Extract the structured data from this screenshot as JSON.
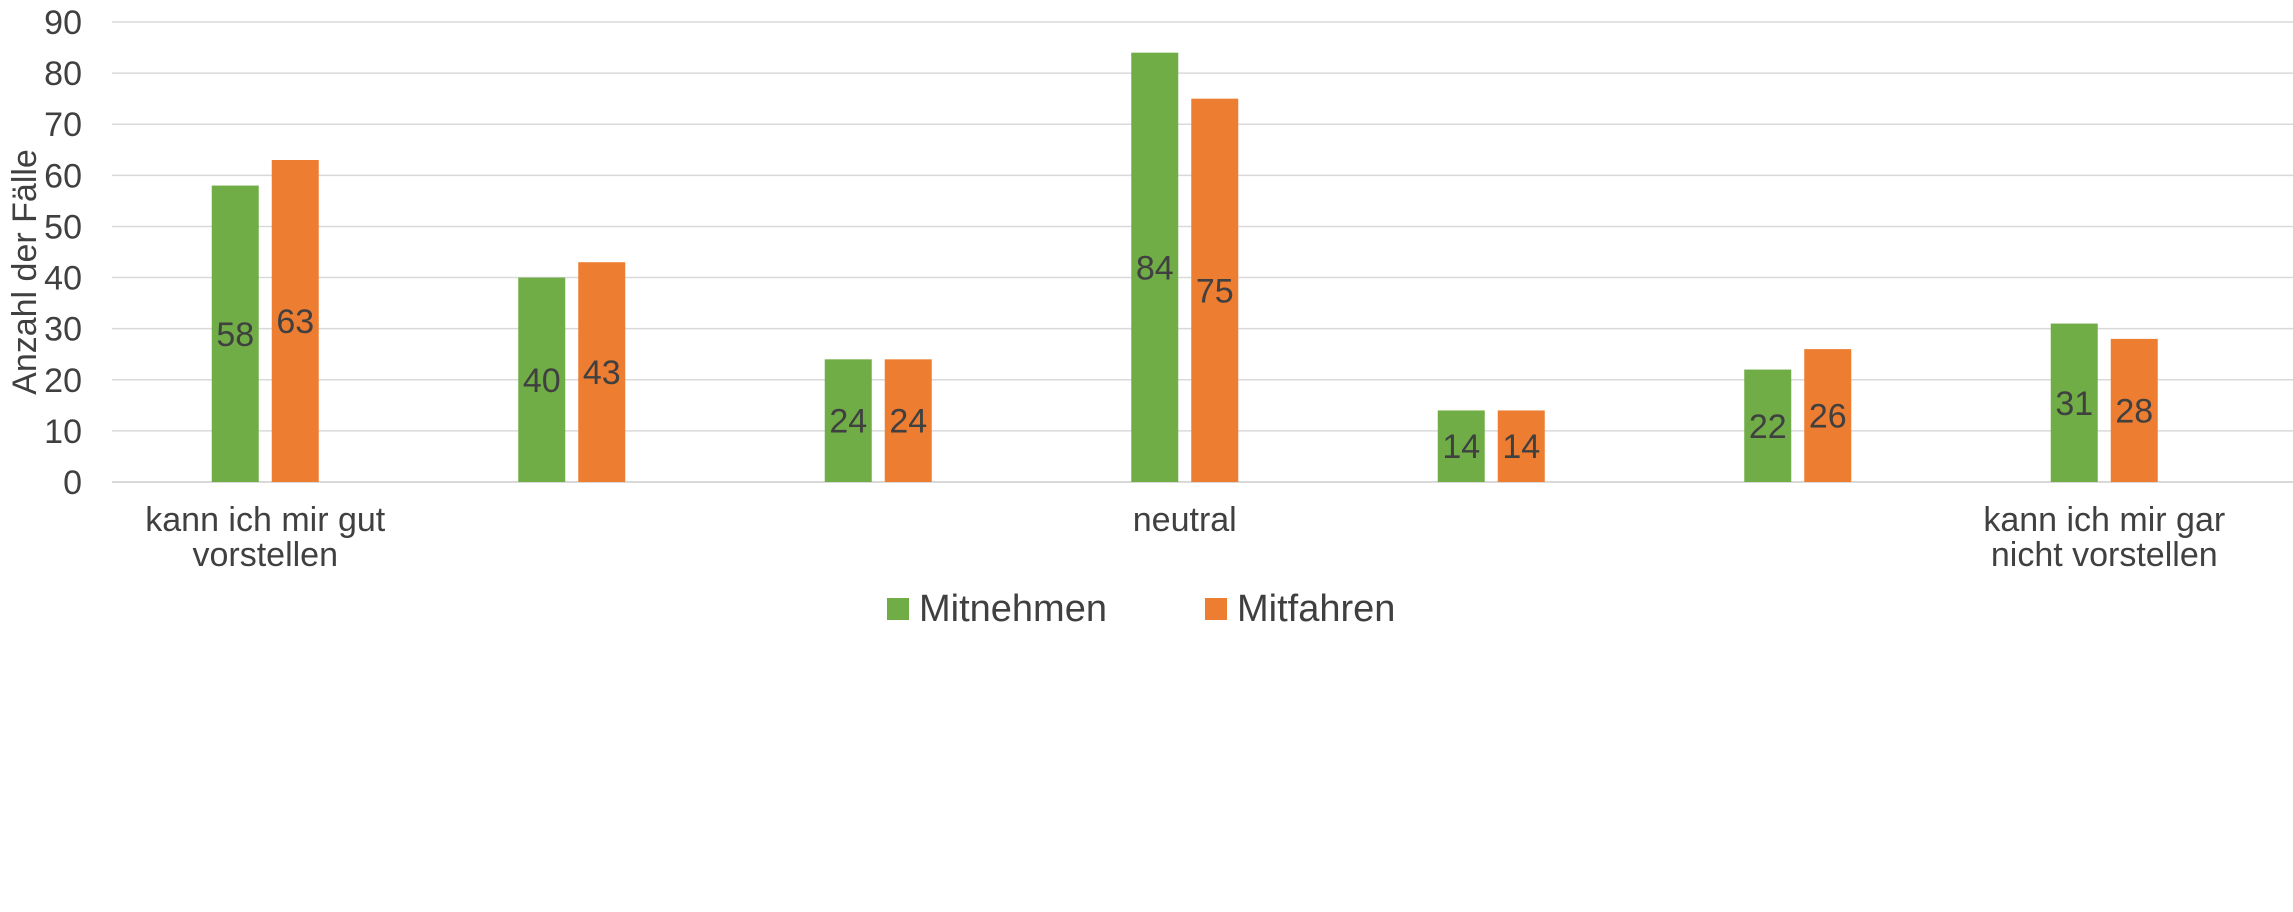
{
  "chart_data": {
    "type": "bar",
    "title": "",
    "xlabel": "",
    "ylabel": "Anzahl der Fälle",
    "ylim": [
      0,
      90
    ],
    "yticks": [
      0,
      10,
      20,
      30,
      40,
      50,
      60,
      70,
      80,
      90
    ],
    "grid": true,
    "legend_position": "bottom",
    "categories": [
      "kann ich mir gut vorstellen",
      "",
      "",
      "neutral",
      "",
      "",
      "kann ich mir gar nicht vorstellen"
    ],
    "category_label_lines": [
      [
        "kann ich mir gut",
        "vorstellen"
      ],
      [],
      [],
      [
        "neutral"
      ],
      [],
      [],
      [
        "kann ich mir gar",
        "nicht vorstellen"
      ]
    ],
    "series": [
      {
        "name": "Mitnehmen",
        "color": "#70ad47",
        "values": [
          58,
          40,
          24,
          84,
          14,
          22,
          31
        ]
      },
      {
        "name": "Mitfahren",
        "color": "#ed7d31",
        "values": [
          63,
          43,
          24,
          75,
          14,
          26,
          28
        ]
      }
    ]
  }
}
